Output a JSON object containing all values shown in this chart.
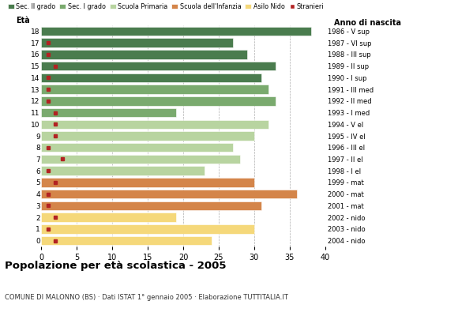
{
  "ages": [
    18,
    17,
    16,
    15,
    14,
    13,
    12,
    11,
    10,
    9,
    8,
    7,
    6,
    5,
    4,
    3,
    2,
    1,
    0
  ],
  "years": [
    "1986 - V sup",
    "1987 - VI sup",
    "1988 - III sup",
    "1989 - II sup",
    "1990 - I sup",
    "1991 - III med",
    "1992 - II med",
    "1993 - I med",
    "1994 - V el",
    "1995 - IV el",
    "1996 - III el",
    "1997 - II el",
    "1998 - I el",
    "1999 - mat",
    "2000 - mat",
    "2001 - mat",
    "2002 - nido",
    "2003 - nido",
    "2004 - nido"
  ],
  "bar_values": [
    38,
    27,
    29,
    33,
    31,
    32,
    33,
    19,
    32,
    30,
    27,
    28,
    23,
    30,
    36,
    31,
    19,
    30,
    24
  ],
  "stranieri": [
    0,
    1,
    1,
    2,
    1,
    1,
    1,
    2,
    2,
    2,
    1,
    3,
    1,
    2,
    1,
    1,
    2,
    1,
    2
  ],
  "categories": [
    "Sec. II grado",
    "Sec. I grado",
    "Scuola Primaria",
    "Scuola dell'Infanzia",
    "Asilo Nido"
  ],
  "bar_colors": [
    "#4a7c4e",
    "#4a7c4e",
    "#4a7c4e",
    "#4a7c4e",
    "#4a7c4e",
    "#7aaa6e",
    "#7aaa6e",
    "#7aaa6e",
    "#b8d4a0",
    "#b8d4a0",
    "#b8d4a0",
    "#b8d4a0",
    "#b8d4a0",
    "#d4854a",
    "#d4854a",
    "#d4854a",
    "#f5d87a",
    "#f5d87a",
    "#f5d87a"
  ],
  "legend_colors": [
    "#4a7c4e",
    "#7aaa6e",
    "#b8d4a0",
    "#d4854a",
    "#f5d87a",
    "#b22222"
  ],
  "stranieri_color": "#b22222",
  "title": "Popolazione per età scolastica - 2005",
  "subtitle": "COMUNE DI MALONNO (BS) · Dati ISTAT 1° gennaio 2005 · Elaborazione TUTTITALIA.IT",
  "eta_label": "Età",
  "anno_label": "Anno di nascita",
  "xlim": [
    0,
    40
  ],
  "xticks": [
    0,
    5,
    10,
    15,
    20,
    25,
    30,
    35,
    40
  ],
  "grid_color": "#999999",
  "bg_color": "#ffffff"
}
